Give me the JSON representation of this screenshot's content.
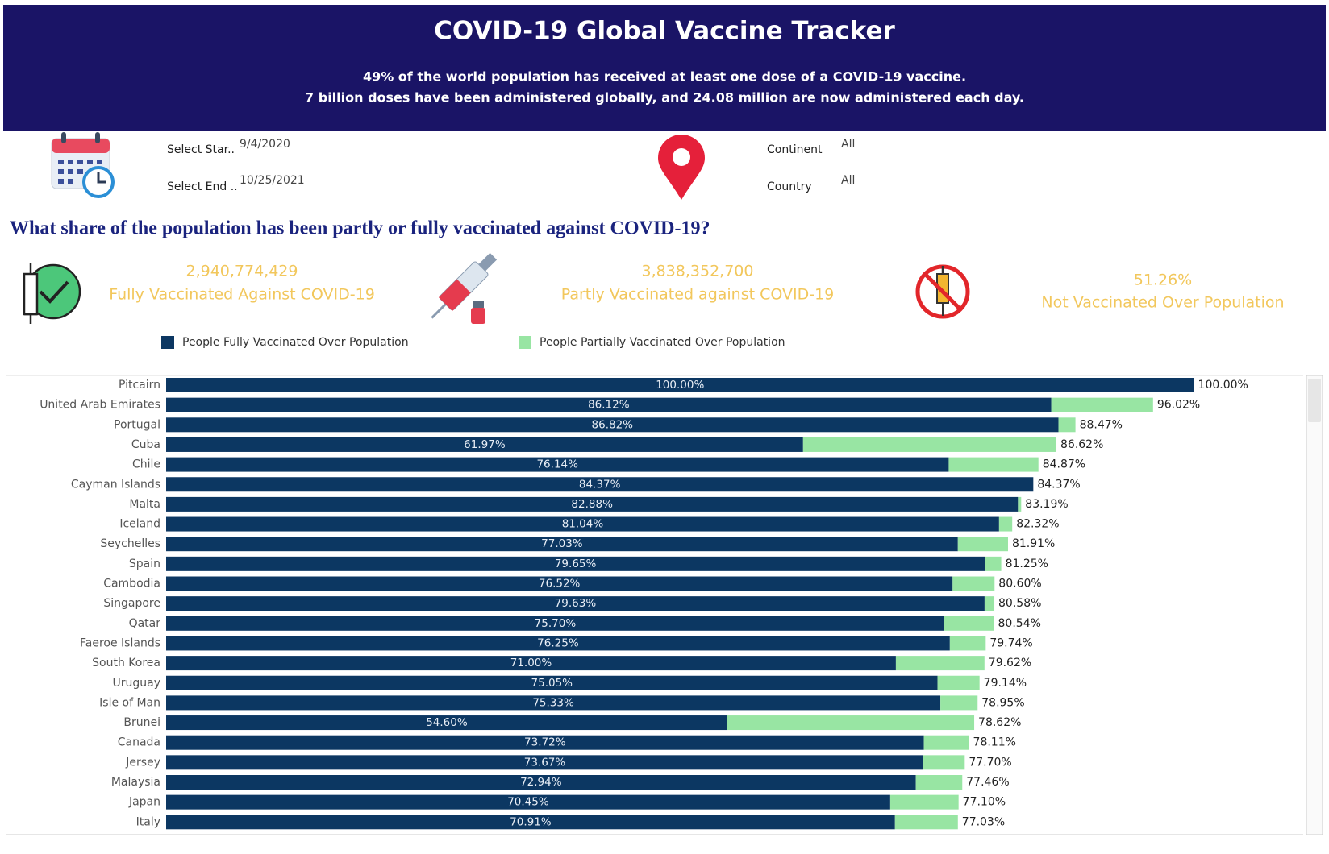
{
  "header": {
    "title": "COVID-19 Global Vaccine Tracker",
    "subtitle_lines": [
      "49% of the world population has received at least one dose of a COVID-19 vaccine.",
      "7 billion doses have been administered globally, and 24.08 million are now administered each day."
    ]
  },
  "filters": [
    {
      "label": "Select Star..",
      "value": "9/4/2020"
    },
    {
      "label": "Select End ..",
      "value": "10/25/2021"
    },
    {
      "label": "Continent",
      "value": "All"
    },
    {
      "label": "Country",
      "value": "All"
    }
  ],
  "kpis": [
    {
      "value": "2,940,774,429",
      "label": "Fully Vaccinated Against COVID-19"
    },
    {
      "value": "3,838,352,700",
      "label": "Partly Vaccinated against COVID-19"
    },
    {
      "value": "51.26%",
      "label": "Not Vaccinated Over Population"
    }
  ],
  "chart_data": {
    "type": "stacked_bar_horizontal",
    "title": "What share of the population has been partly or fully vaccinated against COVID-19?",
    "categories": [
      "Pitcairn",
      "United Arab Emirates",
      "Portugal",
      "Cuba",
      "Chile",
      "Cayman Islands",
      "Malta",
      "Iceland",
      "Seychelles",
      "Spain",
      "Cambodia",
      "Singapore",
      "Qatar",
      "Faeroe Islands",
      "South Korea",
      "Uruguay",
      "Isle of Man",
      "Brunei",
      "Canada",
      "Jersey",
      "Malaysia",
      "Japan",
      "Italy"
    ],
    "series": [
      {
        "name": "People Fully Vaccinated Over Population",
        "color": "#0c3762",
        "values": [
          100,
          86.12,
          86.82,
          61.97,
          76.14,
          84.37,
          82.88,
          81.04,
          77.03,
          79.65,
          76.52,
          79.63,
          75.7,
          76.25,
          71.0,
          75.05,
          75.33,
          54.6,
          73.72,
          73.67,
          72.94,
          70.45,
          70.91
        ],
        "value_labels": [
          "100.00%",
          "86.12%",
          "86.82%",
          "61.97%",
          "76.14%",
          "84.37%",
          "82.88%",
          "81.04%",
          "77.03%",
          "79.65%",
          "76.52%",
          "79.63%",
          "75.70%",
          "76.25%",
          "71.00%",
          "75.05%",
          "75.33%",
          "54.60%",
          "73.72%",
          "73.67%",
          "72.94%",
          "70.45%",
          "70.91%"
        ]
      },
      {
        "name": "People Partially Vaccinated Over Population",
        "color": "#98e5a3",
        "values": [
          0,
          9.9,
          1.65,
          24.65,
          8.73,
          0,
          0.31,
          1.28,
          4.88,
          1.6,
          4.08,
          0.95,
          4.84,
          3.49,
          8.62,
          4.09,
          3.62,
          24.02,
          4.39,
          4.03,
          4.52,
          6.65,
          6.12
        ]
      }
    ],
    "totals": [
      100,
      96.02,
      88.47,
      86.62,
      84.87,
      84.37,
      83.19,
      82.32,
      81.91,
      81.25,
      80.6,
      80.58,
      80.54,
      79.74,
      79.62,
      79.14,
      78.95,
      78.62,
      78.11,
      77.7,
      77.46,
      77.1,
      77.03
    ],
    "total_labels": [
      "100.00%",
      "96.02%",
      "88.47%",
      "86.62%",
      "84.87%",
      "84.37%",
      "83.19%",
      "82.32%",
      "81.91%",
      "81.25%",
      "80.60%",
      "80.58%",
      "80.54%",
      "79.74%",
      "79.62%",
      "79.14%",
      "78.95%",
      "78.62%",
      "78.11%",
      "77.70%",
      "77.46%",
      "77.10%",
      "77.03%"
    ],
    "xlim": [
      0,
      110
    ]
  }
}
